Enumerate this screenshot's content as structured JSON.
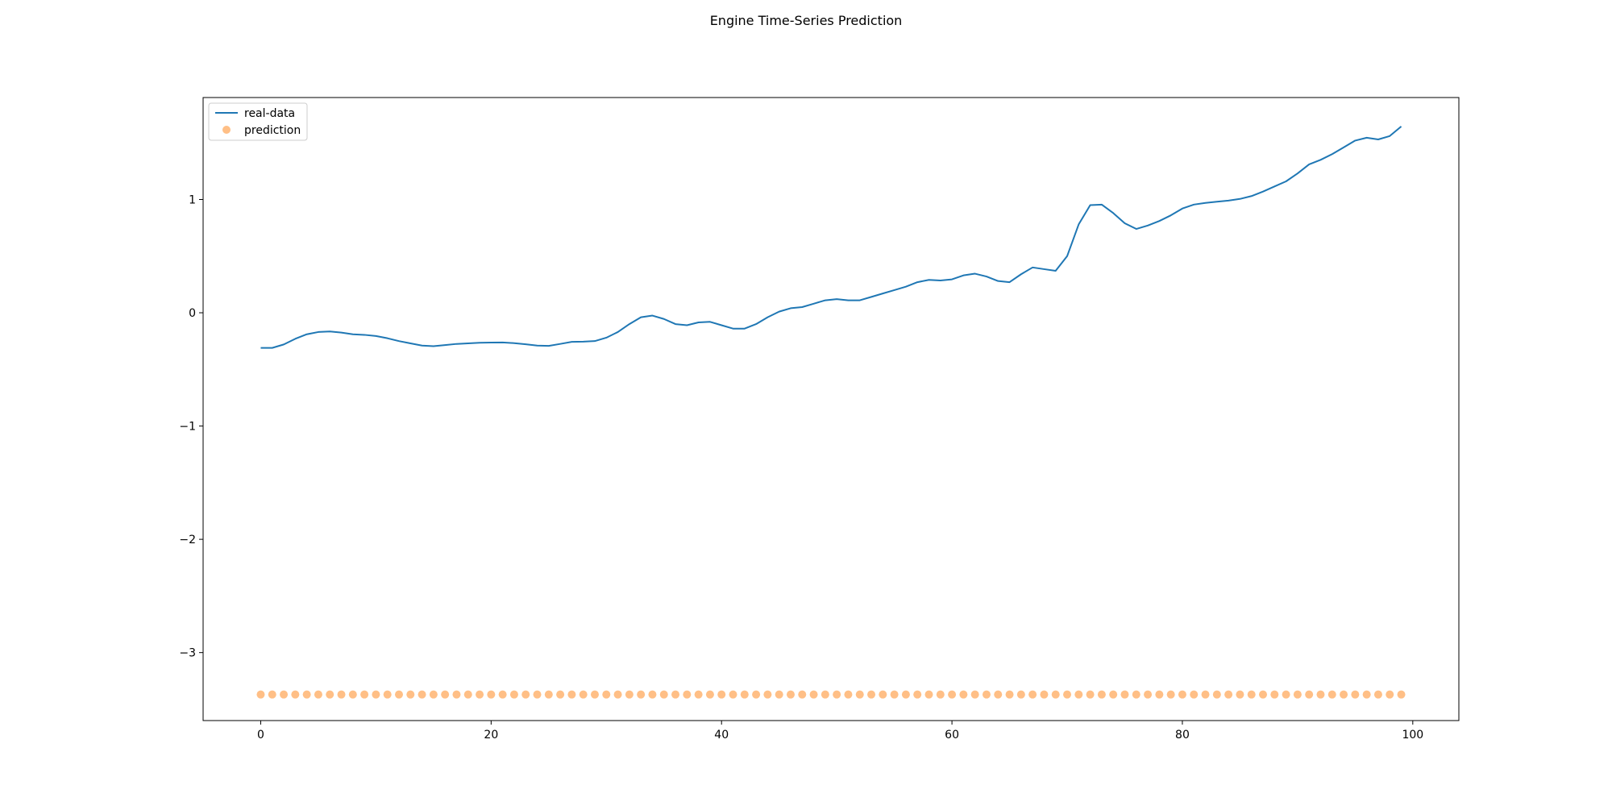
{
  "chart_data": {
    "type": "line",
    "title": "Engine Time-Series Prediction",
    "xlim": [
      -5,
      104
    ],
    "ylim": [
      -3.6,
      1.9
    ],
    "x_ticks": [
      0,
      20,
      40,
      60,
      80,
      100
    ],
    "x_tick_labels": [
      "0",
      "20",
      "40",
      "60",
      "80",
      "100"
    ],
    "y_ticks": [
      1,
      0,
      -1,
      -2,
      -3
    ],
    "y_tick_labels": [
      "1",
      "0",
      "−1",
      "−2",
      "−3"
    ],
    "legend_position": "upper-left",
    "grid": false,
    "colors": {
      "real": "#1f77b4",
      "prediction": "#ff7f0e"
    },
    "series": [
      {
        "name": "real-data",
        "kind": "line",
        "x_start": 0,
        "values": [
          -0.31,
          -0.31,
          -0.28,
          -0.23,
          -0.19,
          -0.17,
          -0.165,
          -0.175,
          -0.19,
          -0.195,
          -0.205,
          -0.225,
          -0.25,
          -0.27,
          -0.29,
          -0.295,
          -0.285,
          -0.275,
          -0.27,
          -0.265,
          -0.263,
          -0.262,
          -0.268,
          -0.278,
          -0.29,
          -0.292,
          -0.275,
          -0.257,
          -0.255,
          -0.25,
          -0.22,
          -0.17,
          -0.1,
          -0.04,
          -0.025,
          -0.055,
          -0.1,
          -0.11,
          -0.085,
          -0.08,
          -0.11,
          -0.14,
          -0.14,
          -0.1,
          -0.04,
          0.01,
          0.04,
          0.05,
          0.08,
          0.11,
          0.12,
          0.11,
          0.11,
          0.14,
          0.17,
          0.2,
          0.23,
          0.27,
          0.29,
          0.285,
          0.295,
          0.33,
          0.345,
          0.32,
          0.28,
          0.27,
          0.34,
          0.4,
          0.385,
          0.37,
          0.5,
          0.78,
          0.95,
          0.955,
          0.88,
          0.79,
          0.74,
          0.77,
          0.81,
          0.86,
          0.92,
          0.955,
          0.97,
          0.98,
          0.99,
          1.005,
          1.03,
          1.07,
          1.115,
          1.16,
          1.23,
          1.31,
          1.35,
          1.4,
          1.46,
          1.52,
          1.545,
          1.53,
          1.56,
          1.645
        ]
      },
      {
        "name": "prediction",
        "kind": "scatter",
        "x_start": 0,
        "count": 100,
        "value": -3.37
      }
    ]
  }
}
